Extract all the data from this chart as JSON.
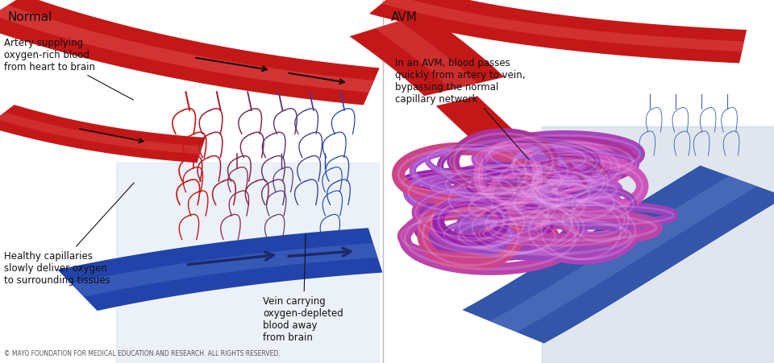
{
  "title_left": "Normal",
  "title_right": "AVM",
  "bg_color": "#ffffff",
  "annotation_left_1": "Artery supplying\noxygen-rich blood\nfrom heart to brain",
  "annotation_left_2": "Healthy capillaries\nslowly deliver oxygen\nto surrounding tissues",
  "annotation_left_3": "Vein carrying\noxygen-depleted\nblood away\nfrom brain",
  "annotation_right_1": "In an AVM, blood passes\nquickly from artery to vein,\nbypassing the normal\ncapillary network",
  "copyright": "© MAYO FOUNDATION FOR MEDICAL EDUCATION AND RESEARCH. ALL RIGHTS RESERVED.",
  "figsize": [
    9.6,
    4.52
  ],
  "dpi": 100,
  "title_fontsize": 11,
  "annotation_fontsize": 8.5,
  "copyright_fontsize": 5.5
}
